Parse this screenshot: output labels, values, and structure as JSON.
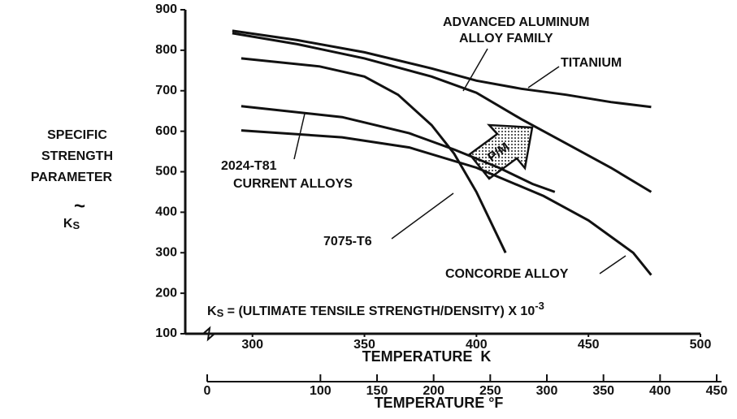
{
  "chart_data": {
    "type": "line",
    "xlabel": "TEMPERATURE  K",
    "xlim": [
      270,
      500
    ],
    "xticks": [
      300,
      350,
      400,
      450,
      500
    ],
    "ylim": [
      100,
      900
    ],
    "yticks": [
      100,
      200,
      300,
      400,
      500,
      600,
      700,
      800,
      900
    ],
    "ylabel_lines": [
      "SPECIFIC",
      "STRENGTH",
      "PARAMETER"
    ],
    "ylabel_tilde": "~",
    "ylabel_symbol": "K",
    "ylabel_symbol_sub": "S",
    "x2label": "TEMPERATURE °F",
    "x2lim": [
      0,
      450
    ],
    "x2ticks": [
      0,
      100,
      150,
      200,
      250,
      300,
      350,
      400,
      450
    ],
    "formula": {
      "symbol": "K",
      "sub": "S",
      "text": " = (ULTIMATE TENSILE STRENGTH/DENSITY) X 10",
      "sup": "-3"
    },
    "arrow_label": "P/M",
    "color": "#111111",
    "series": [
      {
        "label": [
          "TITANIUM"
        ],
        "x": [
          291,
          320,
          350,
          380,
          400,
          420,
          440,
          460,
          478
        ],
        "values": [
          848,
          825,
          795,
          755,
          725,
          705,
          690,
          672,
          660
        ]
      },
      {
        "label": [
          "ADVANCED ALUMINUM",
          "ALLOY FAMILY"
        ],
        "x": [
          291,
          320,
          350,
          380,
          400,
          420,
          440,
          460,
          478
        ],
        "values": [
          842,
          815,
          780,
          735,
          695,
          630,
          570,
          510,
          450
        ]
      },
      {
        "label": [
          "7075-T6"
        ],
        "x": [
          295,
          330,
          350,
          365,
          380,
          390,
          400,
          413
        ],
        "values": [
          780,
          760,
          735,
          690,
          615,
          545,
          450,
          300
        ]
      },
      {
        "label": [
          "2024-T81",
          "CURRENT ALLOYS"
        ],
        "x": [
          295,
          340,
          370,
          390,
          410,
          425,
          435
        ],
        "values": [
          662,
          635,
          595,
          555,
          510,
          470,
          450
        ]
      },
      {
        "label": [
          "CONCORDE ALLOY"
        ],
        "x": [
          295,
          340,
          370,
          400,
          430,
          450,
          470,
          478
        ],
        "values": [
          602,
          585,
          560,
          510,
          440,
          380,
          300,
          245
        ]
      }
    ]
  }
}
